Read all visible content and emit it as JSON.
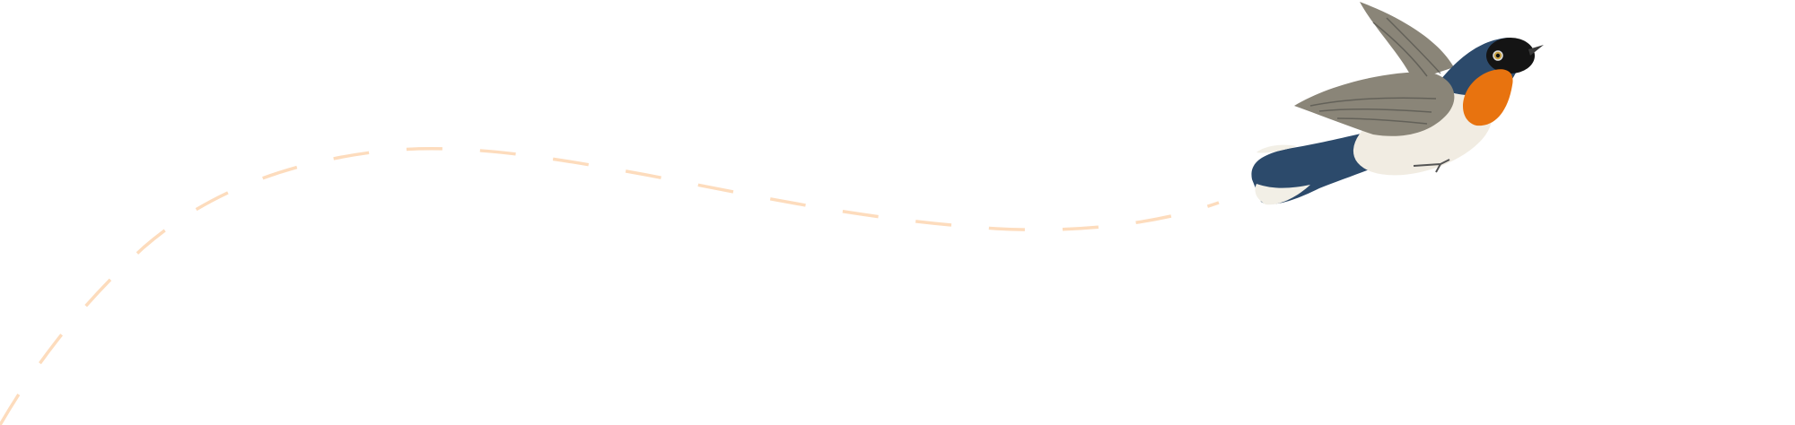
{
  "illustration": {
    "subject": "bird-in-flight",
    "colors": {
      "flight_path": "#fddcbd",
      "bird_back": "#2c4a6b",
      "bird_throat": "#e8730f",
      "bird_wing": "#8a8578",
      "bird_belly": "#f1ece2",
      "bird_head": "#141414"
    }
  }
}
